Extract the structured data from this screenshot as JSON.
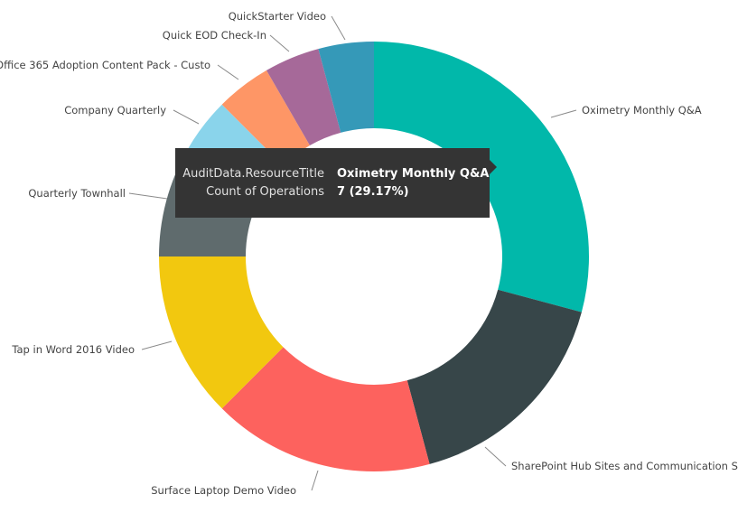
{
  "chart_data": {
    "type": "donut",
    "categories": [
      "Oximetry Monthly Q&A",
      "SharePoint Hub Sites and Communication S",
      "Surface Laptop Demo Video",
      "Tap in Word 2016 Video",
      "Quarterly Townhall",
      "Company Quarterly",
      "Office 365 Adoption Content Pack - Custo",
      "Quick EOD Check-In",
      "QuickStarter Video"
    ],
    "values": [
      7,
      4,
      4,
      3,
      2,
      1,
      1,
      1,
      1
    ],
    "total": 24,
    "colors": [
      "#01B8AA",
      "#374649",
      "#FD625E",
      "#F2C80F",
      "#5F6B6D",
      "#8AD4EB",
      "#FE9666",
      "#A66999",
      "#3599B8"
    ],
    "legend": "none"
  },
  "tooltip": {
    "field_key": "AuditData.ResourceTitle",
    "field_value": "Oximetry Monthly Q&A",
    "measure_key": "Count of Operations",
    "measure_value": "7 (29.17%)"
  }
}
